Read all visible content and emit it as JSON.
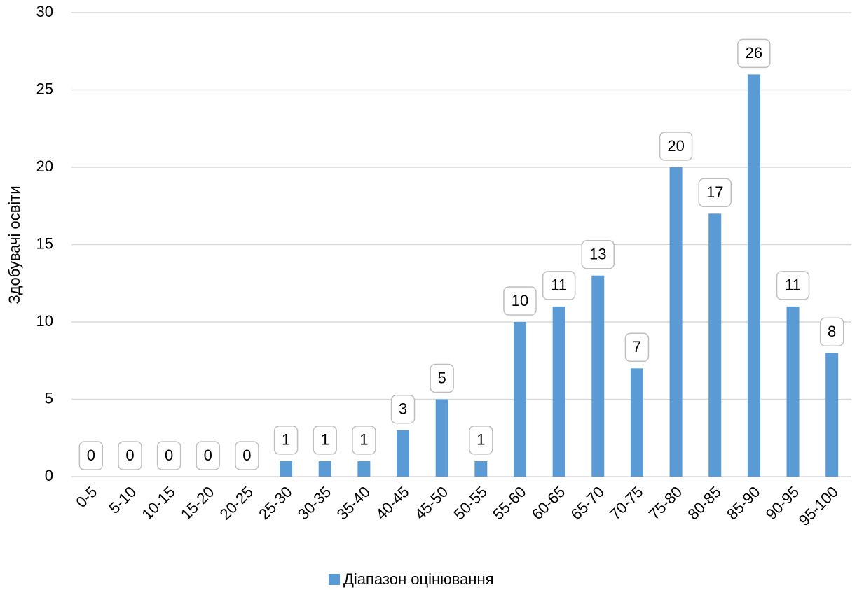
{
  "chart_data": {
    "type": "bar",
    "y_label": "Здобувачі освіти",
    "categories": [
      "0-5",
      "5-10",
      "10-15",
      "15-20",
      "20-25",
      "25-30",
      "30-35",
      "35-40",
      "40-45",
      "45-50",
      "50-55",
      "55-60",
      "60-65",
      "65-70",
      "70-75",
      "75-80",
      "80-85",
      "85-90",
      "90-95",
      "95-100"
    ],
    "series": [
      {
        "name": "Діапазон оцінювання",
        "color": "#5b9bd5",
        "values": [
          0,
          0,
          0,
          0,
          0,
          1,
          1,
          1,
          3,
          5,
          1,
          10,
          11,
          13,
          7,
          20,
          17,
          26,
          11,
          8
        ]
      }
    ],
    "ylim": [
      0,
      30
    ],
    "yticks": [
      0,
      5,
      10,
      15,
      20,
      25,
      30
    ],
    "grid": true,
    "legend": "bottom"
  }
}
